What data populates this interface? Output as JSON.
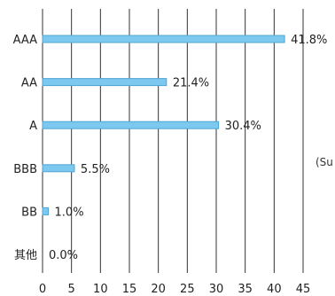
{
  "chart_data": {
    "type": "bar",
    "orientation": "horizontal",
    "categories": [
      "AAA",
      "AA",
      "A",
      "BBB",
      "BB",
      "其他"
    ],
    "values": [
      41.8,
      21.4,
      30.4,
      5.5,
      1.0,
      0.0
    ],
    "data_labels": [
      "41.8%",
      "21.4%",
      "30.4%",
      "5.5%",
      "1.0%",
      "0.0%"
    ],
    "x_ticks": [
      0,
      5,
      10,
      15,
      20,
      25,
      30,
      35,
      40,
      45
    ],
    "xlim": [
      0,
      45
    ],
    "grid": true,
    "legend": "none",
    "bar_color": "#7cc8ee",
    "bar_edge_color": "#4fa6d6",
    "gridline_color": "#333333"
  },
  "side_note": "(Su"
}
